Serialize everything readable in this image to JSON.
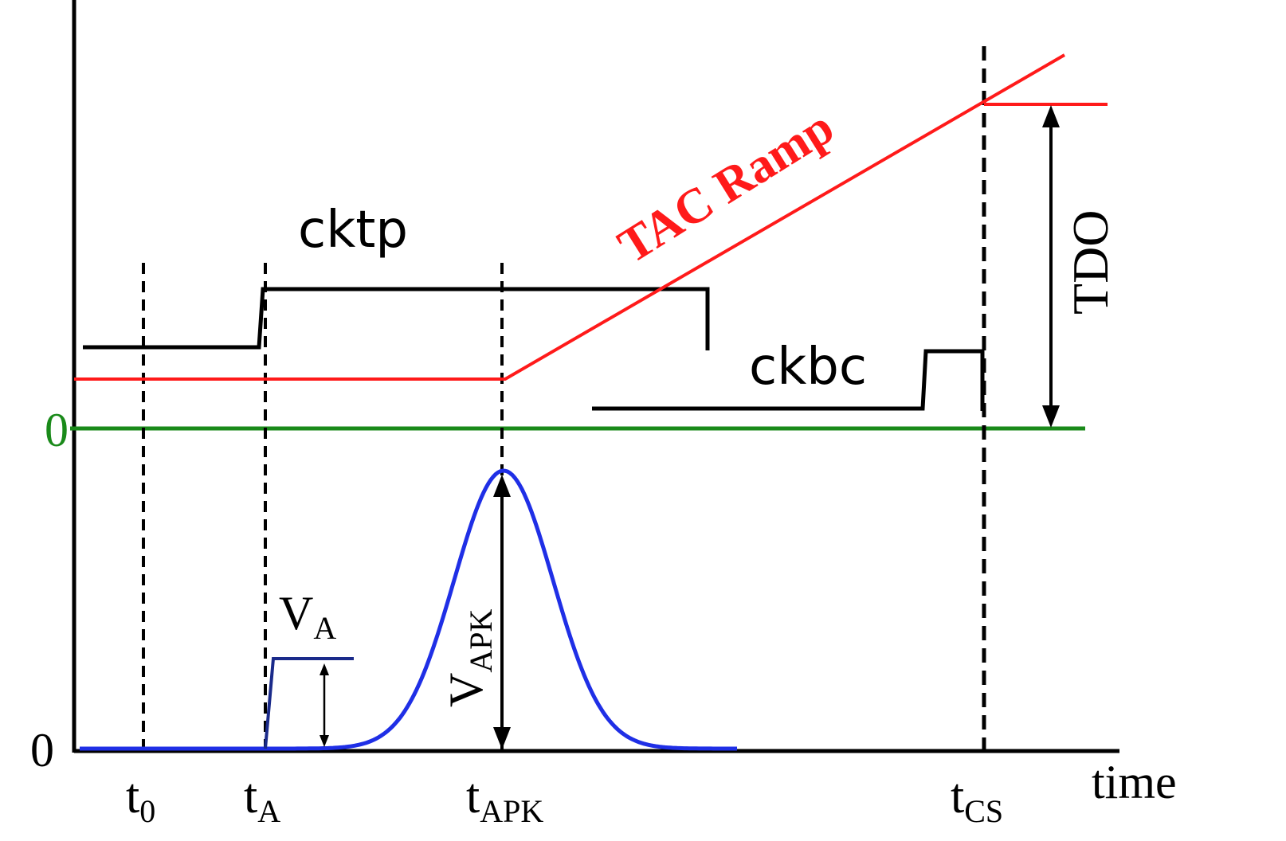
{
  "colors": {
    "axis": "#000000",
    "tac_ramp": "#ff1a1a",
    "zero_line": "#1a8a1a",
    "pulse": "#1f2fe6",
    "va_step": "#1a2a8a",
    "clock": "#000000"
  },
  "labels": {
    "zero_upper": "0",
    "zero_lower": "0",
    "time_axis": "time",
    "tac_ramp": "TAC Ramp",
    "cktp": "cktp",
    "ckbc": "ckbc",
    "tdo": "TDO"
  },
  "time_markers": [
    {
      "base": "t",
      "sub": "0"
    },
    {
      "base": "t",
      "sub": "A"
    },
    {
      "base": "t",
      "sub": "APK"
    },
    {
      "base": "t",
      "sub": "CS"
    }
  ],
  "voltage_labels": {
    "va": {
      "base": "V",
      "sub": "A"
    },
    "vapk": {
      "base": "V",
      "sub": "APK"
    }
  }
}
